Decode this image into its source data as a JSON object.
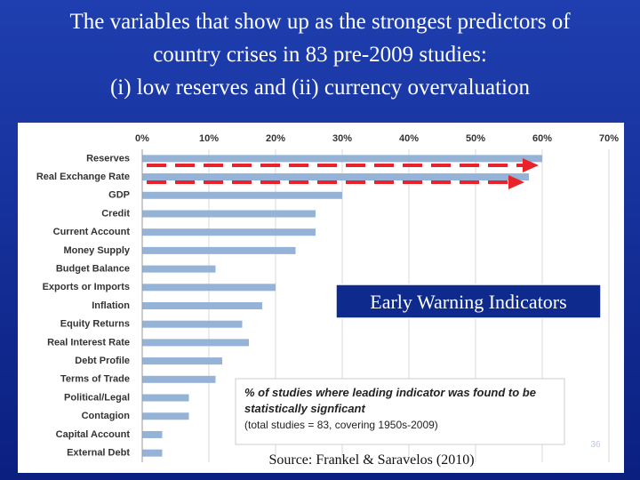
{
  "chart_data": {
    "type": "bar",
    "orientation": "horizontal",
    "title": [
      "The variables that show up as the strongest predictors of",
      "country crises in 83 pre-2009 studies:",
      "(i) low reserves and (ii) currency overvaluation"
    ],
    "categories": [
      "Reserves",
      "Real Exchange Rate",
      "GDP",
      "Credit",
      "Current Account",
      "Money Supply",
      "Budget Balance",
      "Exports or Imports",
      "Inflation",
      "Equity Returns",
      "Real Interest Rate",
      "Debt Profile",
      "Terms of Trade",
      "Political/Legal",
      "Contagion",
      "Capital Account",
      "External Debt"
    ],
    "values": [
      60,
      58,
      30,
      26,
      26,
      23,
      11,
      20,
      18,
      15,
      16,
      12,
      11,
      7,
      7,
      3,
      3
    ],
    "color": "#95b3d7",
    "xlim": [
      0,
      70
    ],
    "xticks": [
      {
        "value": 0,
        "label": "0%"
      },
      {
        "value": 10,
        "label": "10%"
      },
      {
        "value": 20,
        "label": "20%"
      },
      {
        "value": 30,
        "label": "30%"
      },
      {
        "value": 40,
        "label": "40%"
      },
      {
        "value": 50,
        "label": "50%"
      },
      {
        "value": 60,
        "label": "60%"
      },
      {
        "value": 70,
        "label": "70%"
      }
    ],
    "grid": true,
    "overlay_label": "Early Warning Indicators",
    "note": [
      "% of studies where leading indicator was found to be",
      "statistically signficant",
      "(total studies = 83, covering 1950s-2009)"
    ],
    "source": "Source: Frankel & Saravelos (2010)",
    "slide_number": "36"
  }
}
